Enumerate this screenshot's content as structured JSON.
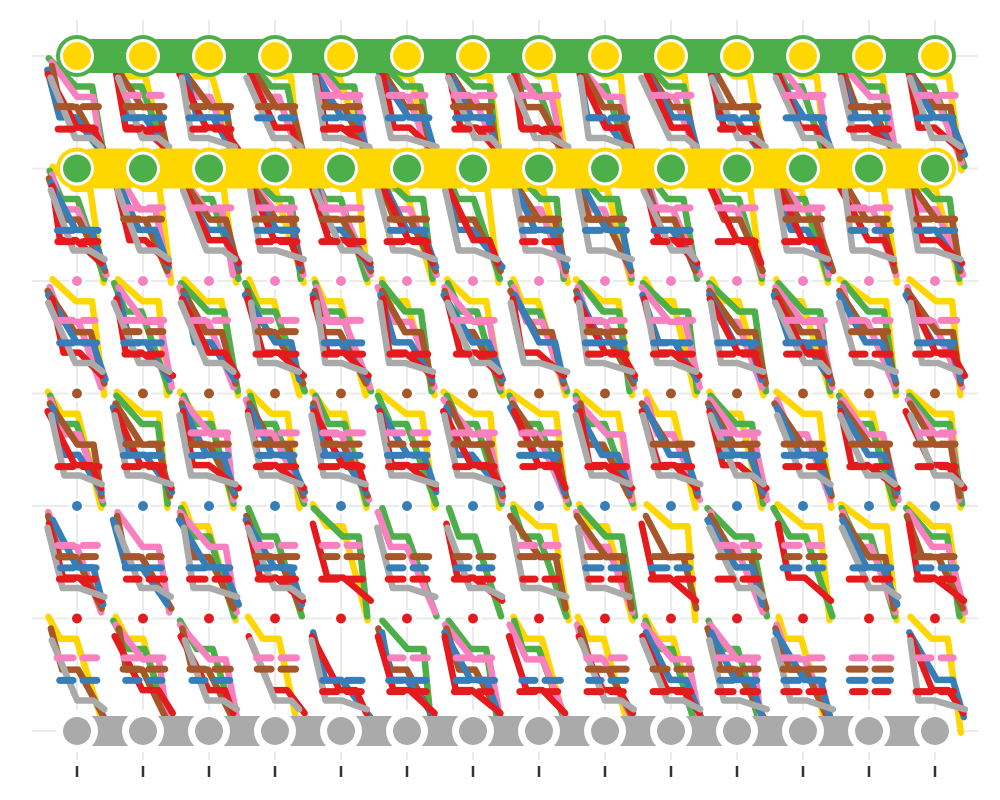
{
  "chart_data": {
    "type": "other",
    "title": "",
    "xlabel": "",
    "ylabel": "",
    "x": [
      1,
      2,
      3,
      4,
      5,
      6,
      7,
      8,
      9,
      10,
      11,
      12,
      13,
      14
    ],
    "grid": true,
    "x_tick_labels_visible": false,
    "y_tick_labels_visible": false,
    "levels": [
      {
        "level": 1,
        "node_color": "#ffd700",
        "ring_color": "#4daf4a",
        "node_size": "large"
      },
      {
        "level": 2,
        "node_color": "#4daf4a",
        "ring_color": "#ffd700",
        "node_size": "large"
      },
      {
        "level": 3,
        "node_color": "#f781bf",
        "ring_color": "#ffffff",
        "node_size": "small"
      },
      {
        "level": 4,
        "node_color": "#a65628",
        "ring_color": "#ffffff",
        "node_size": "small"
      },
      {
        "level": 5,
        "node_color": "#377eb8",
        "ring_color": "#ffffff",
        "node_size": "small"
      },
      {
        "level": 6,
        "node_color": "#e41a1c",
        "ring_color": "#ffffff",
        "node_size": "small"
      },
      {
        "level": 7,
        "node_color": "#aaaaaa",
        "ring_color": "#ffffff",
        "node_size": "large"
      }
    ],
    "series": [
      {
        "color": "#ffd700"
      },
      {
        "color": "#4daf4a"
      },
      {
        "color": "#f781bf"
      },
      {
        "color": "#a65628"
      },
      {
        "color": "#377eb8"
      },
      {
        "color": "#e41a1c"
      },
      {
        "color": "#aaaaaa"
      }
    ]
  }
}
